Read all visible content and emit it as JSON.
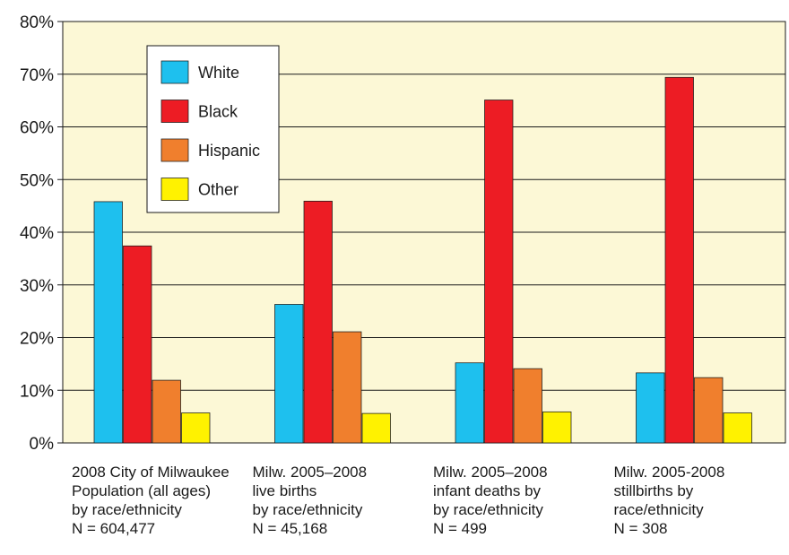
{
  "chart_data": {
    "type": "bar",
    "title": "",
    "xlabel": "",
    "ylabel": "",
    "ylim": [
      0,
      80
    ],
    "yticks": [
      "0%",
      "10%",
      "20%",
      "30%",
      "40%",
      "50%",
      "60%",
      "70%",
      "80%"
    ],
    "grid": true,
    "legend_position": "top-left",
    "categories": [
      [
        "2008 City of Milwaukee",
        "Population (all ages)",
        "by race/ethnicity",
        "N = 604,477"
      ],
      [
        "Milw. 2005–2008",
        "live births",
        "by race/ethnicity",
        "N = 45,168"
      ],
      [
        "Milw. 2005–2008",
        "infant deaths by",
        "by race/ethnicity",
        "N = 499"
      ],
      [
        "Milw. 2005-2008",
        "stillbirths by",
        "race/ethnicity",
        "N = 308"
      ]
    ],
    "series": [
      {
        "name": "White",
        "color": "#1ec0ee",
        "values": [
          45.8,
          26.3,
          15.2,
          13.3
        ]
      },
      {
        "name": "Black",
        "color": "#ed1c24",
        "values": [
          37.4,
          45.9,
          65.1,
          69.4
        ]
      },
      {
        "name": "Hispanic",
        "color": "#f07f2d",
        "values": [
          11.9,
          21.1,
          14.1,
          12.4
        ]
      },
      {
        "name": "Other",
        "color": "#fff200",
        "values": [
          5.7,
          5.6,
          5.9,
          5.7
        ]
      }
    ],
    "colors": {
      "plot_background": "#fcf8d6",
      "gridline": "#1a1a1a",
      "bar_outline": "#1a1a1a"
    }
  }
}
